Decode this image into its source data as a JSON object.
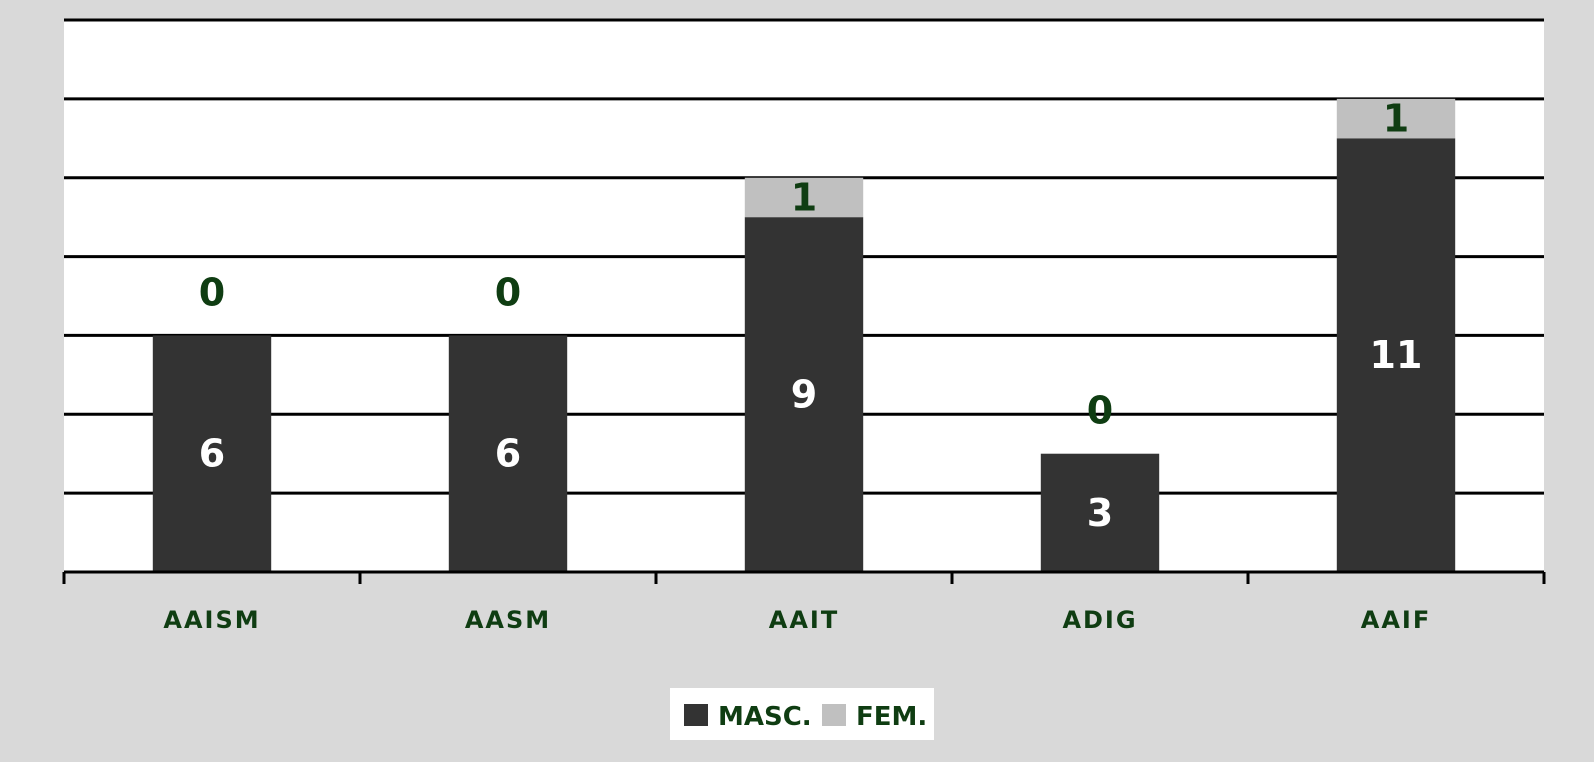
{
  "chart_data": {
    "type": "bar",
    "stacked": true,
    "categories": [
      "AAISM",
      "AASM",
      "AAIT",
      "ADIG",
      "AAIF"
    ],
    "series": [
      {
        "name": "MASC.",
        "values": [
          6,
          6,
          9,
          3,
          11
        ],
        "color": "#333333"
      },
      {
        "name": "FEM.",
        "values": [
          0,
          0,
          1,
          0,
          1
        ],
        "color": "#c0c0c0"
      }
    ],
    "ylim": [
      0,
      14
    ],
    "y_gridline_step": 2,
    "grid": true,
    "legend_position": "bottom",
    "plot_background": "#ffffff",
    "figure_background": "#d9d9d9",
    "label_color": "#0f3d12"
  }
}
